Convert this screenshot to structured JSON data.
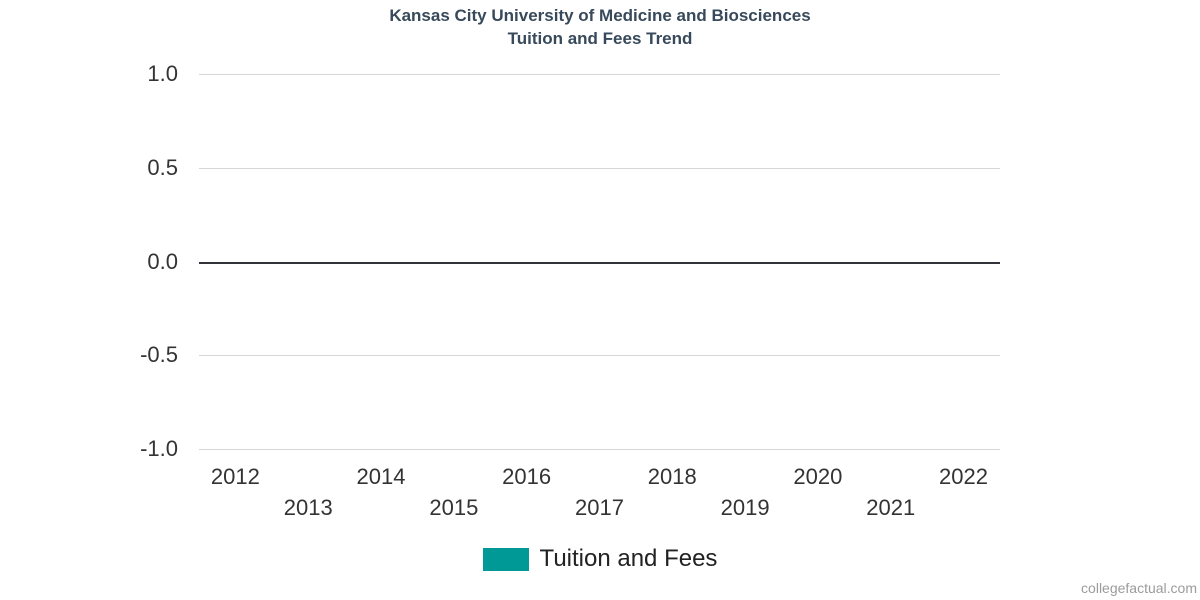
{
  "title": {
    "line1": "Kansas City University of Medicine and Biosciences",
    "line2": "Tuition and Fees Trend",
    "color": "#37495a"
  },
  "chart_data": {
    "type": "column",
    "title": "Kansas City University of Medicine and Biosciences Tuition and Fees Trend",
    "categories": [
      "2012",
      "2013",
      "2014",
      "2015",
      "2016",
      "2017",
      "2018",
      "2019",
      "2020",
      "2021",
      "2022"
    ],
    "series": [
      {
        "name": "Tuition and Fees",
        "color": "#009996",
        "values": []
      }
    ],
    "xlabel": "",
    "ylabel": "",
    "ylim": [
      -1.0,
      1.0
    ],
    "ytick_labels": [
      "1.0",
      "0.5",
      "0.0",
      "-0.5",
      "-1.0"
    ],
    "grid": true,
    "zero_line": true,
    "legend_position": "bottom"
  },
  "legend": {
    "items": [
      {
        "label": "Tuition and Fees",
        "swatch_color": "#009996"
      }
    ]
  },
  "footer": {
    "watermark": "collegefactual.com"
  },
  "colors": {
    "title": "#37495a",
    "tick_label": "#333333",
    "gridline": "#d6d6d6",
    "zero_line": "#303438",
    "series_teal": "#009996",
    "watermark": "#9b9b9b",
    "background": "#ffffff"
  }
}
